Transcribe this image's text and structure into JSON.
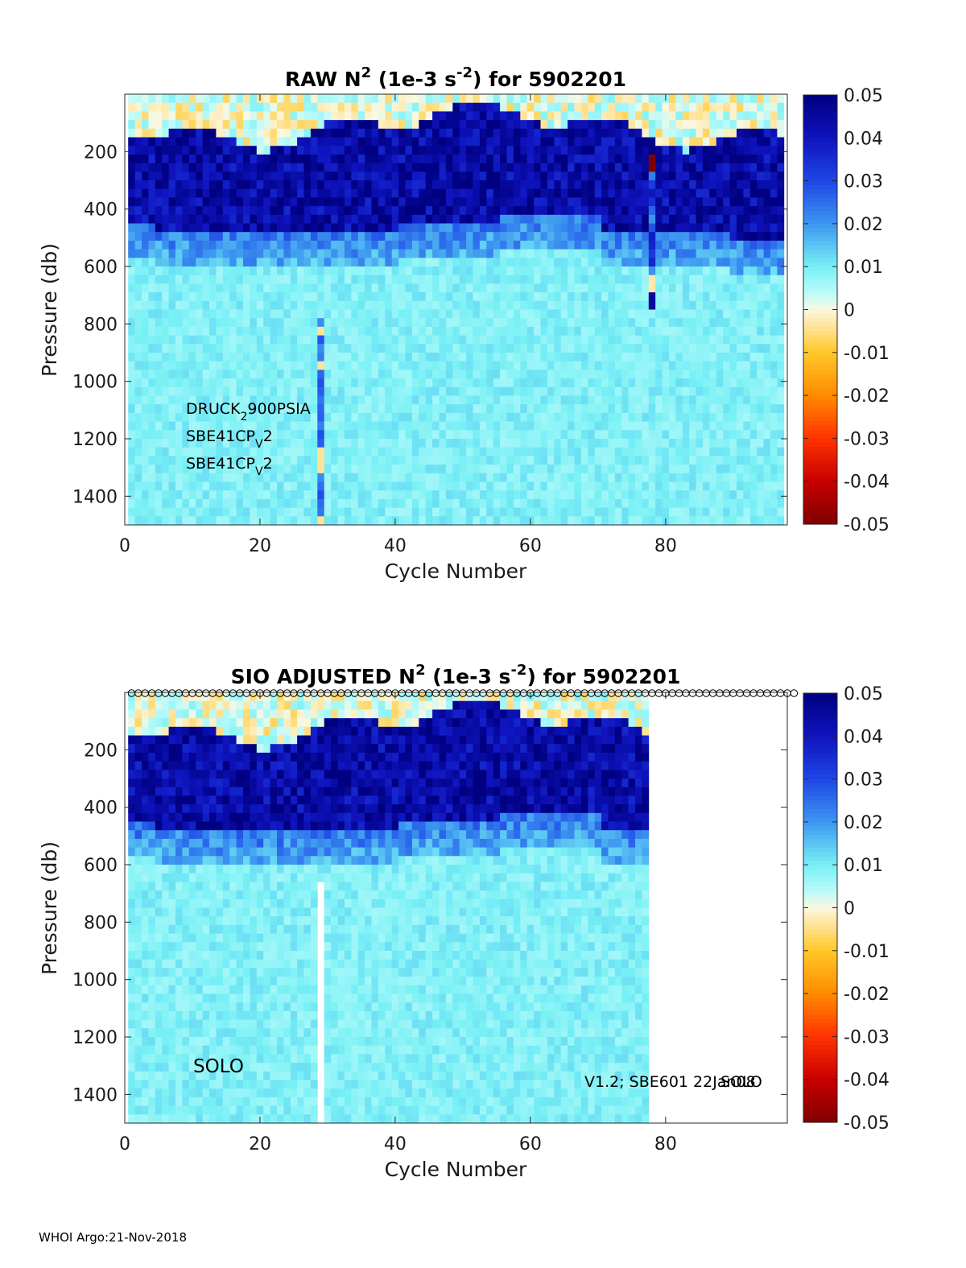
{
  "chart_data": [
    {
      "type": "heatmap",
      "title_main": "RAW N",
      "title_exp": "2",
      "title_units_pre": " (1e-3 s",
      "title_units_exp": "-2",
      "title_rest": ") for 5902201",
      "xlabel": "Cycle Number",
      "ylabel": "Pressure (db)",
      "xlim": [
        0,
        98
      ],
      "ylim": [
        0,
        1500
      ],
      "y_reversed": true,
      "xticks": [
        "0",
        "20",
        "40",
        "60",
        "80"
      ],
      "xtick_values": [
        0,
        20,
        40,
        60,
        80
      ],
      "yticks": [
        "200",
        "400",
        "600",
        "800",
        "1000",
        "1200",
        "1400"
      ],
      "ytick_values": [
        200,
        400,
        600,
        800,
        1000,
        1200,
        1400
      ],
      "cycles_with_data": [
        1,
        97
      ],
      "colorbar": {
        "min": -0.05,
        "max": 0.05,
        "colormap": "jet-diverging",
        "ticks": [
          "0.05",
          "0.04",
          "0.03",
          "0.02",
          "0.01",
          "0",
          "-0.01",
          "-0.02",
          "-0.03",
          "-0.04",
          "-0.05"
        ]
      },
      "profile_summary": [
        {
          "pressure_range": [
            0,
            150
          ],
          "typical_value": 0.003
        },
        {
          "pressure_range": [
            150,
            450
          ],
          "typical_value": 0.045
        },
        {
          "pressure_range": [
            450,
            600
          ],
          "typical_value": 0.015
        },
        {
          "pressure_range": [
            600,
            1500
          ],
          "typical_value": 0.008
        }
      ],
      "annotations": [
        {
          "parts": [
            "DRUCK",
            "2",
            "900PSIA"
          ]
        },
        {
          "parts": [
            "SBE41CP",
            "V",
            "2"
          ]
        },
        {
          "parts": [
            "SBE41CP",
            "V",
            "2"
          ]
        }
      ]
    },
    {
      "type": "heatmap",
      "title_main": "SIO  ADJUSTED N",
      "title_exp": "2",
      "title_units_pre": " (1e-3 s",
      "title_units_exp": "-2",
      "title_rest": ") for 5902201",
      "xlabel": "Cycle Number",
      "ylabel": "Pressure (db)",
      "xlim": [
        0,
        98
      ],
      "ylim": [
        0,
        1500
      ],
      "y_reversed": true,
      "xticks": [
        "0",
        "20",
        "40",
        "60",
        "80"
      ],
      "xtick_values": [
        0,
        20,
        40,
        60,
        80
      ],
      "yticks": [
        "200",
        "400",
        "600",
        "800",
        "1000",
        "1200",
        "1400"
      ],
      "ytick_values": [
        200,
        400,
        600,
        800,
        1000,
        1200,
        1400
      ],
      "cycles_with_data": [
        1,
        77
      ],
      "missing_cycle": 29,
      "qc_marker_cycles": [
        1,
        99
      ],
      "colorbar": {
        "min": -0.05,
        "max": 0.05,
        "colormap": "jet-diverging",
        "ticks": [
          "0.05",
          "0.04",
          "0.03",
          "0.02",
          "0.01",
          "0",
          "-0.01",
          "-0.02",
          "-0.03",
          "-0.04",
          "-0.05"
        ]
      },
      "annotations": [
        {
          "text": "SOLO"
        },
        {
          "text": "V1.2; SBE601 22Jan08"
        },
        {
          "text": "SOLO"
        }
      ]
    }
  ],
  "footer": "WHOI Argo:21-Nov-2018"
}
